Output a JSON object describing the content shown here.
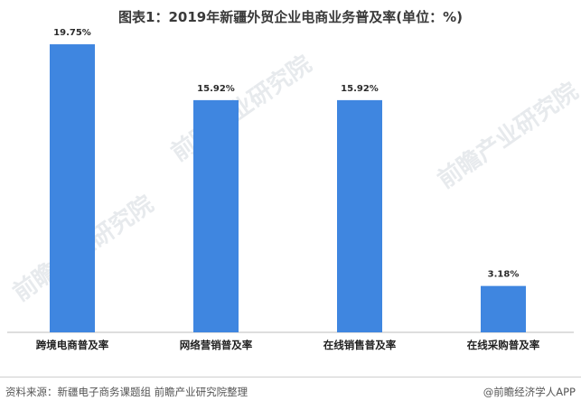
{
  "title": "图表1：2019年新疆外贸企业电商业务普及率(单位：%)",
  "source": "资料来源：新疆电子商务课题组 前瞻产业研究院整理",
  "brand": "@前瞻经济学人APP",
  "watermark": "前瞻产业研究院",
  "colors": {
    "bar": "#3f86e0"
  },
  "chart_data": {
    "type": "bar",
    "categories": [
      "跨境电商普及率",
      "网络营销普及率",
      "在线销售普及率",
      "在线采购普及率"
    ],
    "values": [
      19.75,
      15.92,
      15.92,
      3.18
    ],
    "value_labels": [
      "19.75%",
      "15.92%",
      "15.92%",
      "3.18%"
    ],
    "ylim": [
      0,
      20
    ],
    "grid": false
  }
}
